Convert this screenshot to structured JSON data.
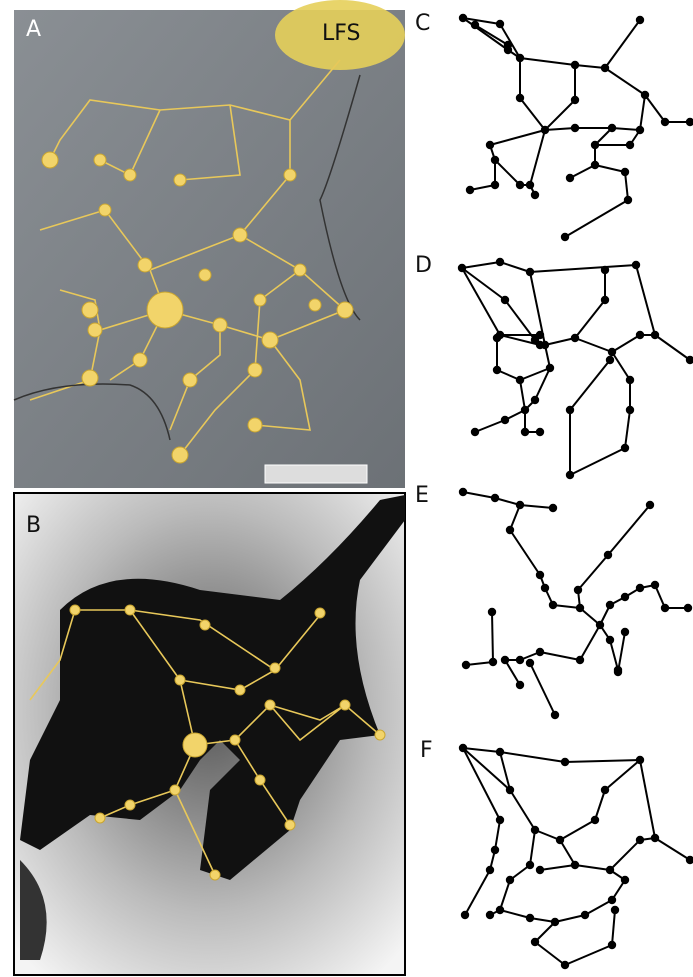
{
  "panels": [
    {
      "label": "A",
      "annotation": "LFS"
    },
    {
      "label": "B"
    },
    {
      "label": "C"
    },
    {
      "label": "D"
    },
    {
      "label": "E"
    },
    {
      "label": "F"
    }
  ]
}
